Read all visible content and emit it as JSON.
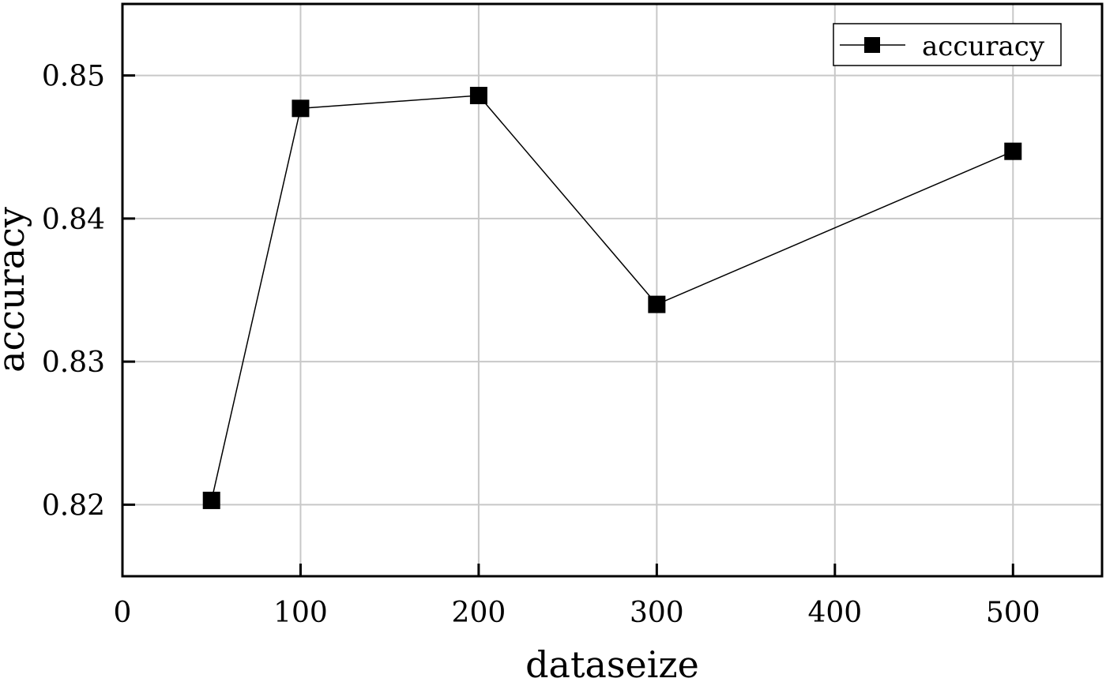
{
  "chart_data": {
    "type": "line",
    "xlabel": "dataseize",
    "ylabel": "accuracy",
    "xlim": [
      0,
      550
    ],
    "ylim": [
      0.815,
      0.855
    ],
    "xticks": [
      0,
      100,
      200,
      300,
      400,
      500
    ],
    "xtick_labels": [
      "0",
      "100",
      "200",
      "300",
      "400",
      "500"
    ],
    "yticks": [
      0.82,
      0.83,
      0.84,
      0.85
    ],
    "ytick_labels": [
      "0.82",
      "0.83",
      "0.84",
      "0.85"
    ],
    "grid": true,
    "legend_position": "top-right",
    "series": [
      {
        "name": "accuracy",
        "marker": "square",
        "color": "#000000",
        "x": [
          50,
          100,
          200,
          300,
          500
        ],
        "y": [
          0.8203,
          0.8477,
          0.8486,
          0.834,
          0.8447
        ]
      }
    ]
  }
}
